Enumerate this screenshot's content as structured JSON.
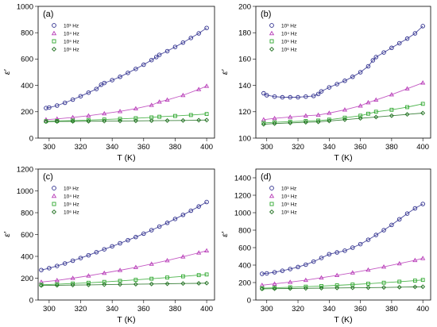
{
  "colors": {
    "series_1e3": "#2b2b8c",
    "series_1e4": "#b83cb8",
    "series_1e5": "#2fa82f",
    "series_1e6": "#1f6f1f"
  },
  "legend_labels": [
    "10³ Hz",
    "10⁴ Hz",
    "10⁵ Hz",
    "10⁶ Hz"
  ],
  "chart_data": [
    {
      "type": "scatter",
      "panel_label": "(a)",
      "xlabel": "T (K)",
      "ylabel": "ε′",
      "xlim": [
        293,
        405
      ],
      "ylim": [
        0,
        1000
      ],
      "x_ticks": [
        300,
        320,
        340,
        360,
        380,
        400
      ],
      "y_ticks": [
        0,
        200,
        400,
        600,
        800,
        1000
      ],
      "legend_position": "top-left",
      "series": [
        {
          "name": "10³ Hz",
          "marker": "circle",
          "color": "#2b2b8c",
          "x": [
            298,
            300,
            305,
            310,
            315,
            320,
            325,
            330,
            333,
            335,
            340,
            345,
            350,
            355,
            360,
            365,
            368,
            370,
            375,
            380,
            385,
            390,
            395,
            400
          ],
          "y": [
            228,
            232,
            247,
            268,
            292,
            318,
            345,
            373,
            405,
            418,
            440,
            465,
            495,
            525,
            557,
            592,
            615,
            632,
            660,
            692,
            725,
            760,
            795,
            836
          ]
        },
        {
          "name": "10⁴ Hz",
          "marker": "triangle",
          "color": "#b83cb8",
          "x": [
            298,
            305,
            315,
            325,
            335,
            345,
            355,
            365,
            370,
            375,
            385,
            395,
            400
          ],
          "y": [
            140,
            146,
            157,
            170,
            186,
            203,
            224,
            250,
            275,
            290,
            325,
            370,
            395
          ]
        },
        {
          "name": "10⁵ Hz",
          "marker": "square",
          "color": "#2fa82f",
          "x": [
            298,
            305,
            315,
            325,
            335,
            345,
            355,
            365,
            370,
            380,
            390,
            400
          ],
          "y": [
            128,
            130,
            133,
            137,
            141,
            146,
            151,
            157,
            162,
            168,
            175,
            183
          ]
        },
        {
          "name": "10⁶ Hz",
          "marker": "diamond",
          "color": "#1f6f1f",
          "x": [
            298,
            305,
            315,
            325,
            335,
            345,
            355,
            365,
            375,
            385,
            395,
            400
          ],
          "y": [
            125,
            126,
            127,
            128,
            129,
            130,
            131,
            132,
            133,
            134,
            136,
            137
          ]
        }
      ]
    },
    {
      "type": "scatter",
      "panel_label": "(b)",
      "xlabel": "T (K)",
      "ylabel": "ε′",
      "xlim": [
        293,
        405
      ],
      "ylim": [
        100,
        200
      ],
      "x_ticks": [
        300,
        320,
        340,
        360,
        380,
        400
      ],
      "y_ticks": [
        100,
        120,
        140,
        160,
        180,
        200
      ],
      "legend_position": "top-left",
      "series": [
        {
          "name": "10³ Hz",
          "marker": "circle",
          "color": "#2b2b8c",
          "x": [
            298,
            300,
            305,
            310,
            315,
            320,
            325,
            330,
            333,
            335,
            340,
            345,
            350,
            355,
            360,
            365,
            368,
            370,
            375,
            380,
            385,
            390,
            395,
            400
          ],
          "y": [
            134,
            132.5,
            131.5,
            131,
            131,
            131,
            131.5,
            132,
            133.5,
            135.5,
            138.5,
            141,
            143.5,
            146.5,
            150,
            154.5,
            159,
            161.5,
            165,
            168.5,
            172,
            175.5,
            179.5,
            185
          ]
        },
        {
          "name": "10⁴ Hz",
          "marker": "triangle",
          "color": "#b83cb8",
          "x": [
            298,
            305,
            315,
            325,
            333,
            340,
            350,
            360,
            365,
            370,
            380,
            390,
            400
          ],
          "y": [
            114,
            115,
            116,
            117,
            117.5,
            119,
            121.5,
            124.5,
            127,
            129,
            133,
            137.5,
            142
          ]
        },
        {
          "name": "10⁵ Hz",
          "marker": "square",
          "color": "#2fa82f",
          "x": [
            298,
            305,
            315,
            325,
            333,
            340,
            350,
            360,
            365,
            370,
            380,
            390,
            400
          ],
          "y": [
            111.5,
            112,
            112.5,
            113,
            113.3,
            114,
            115.5,
            117,
            118.5,
            120,
            121.5,
            123.5,
            126
          ]
        },
        {
          "name": "10⁶ Hz",
          "marker": "diamond",
          "color": "#1f6f1f",
          "x": [
            298,
            305,
            315,
            325,
            333,
            340,
            350,
            360,
            370,
            380,
            390,
            400
          ],
          "y": [
            110.5,
            111,
            111.5,
            112,
            112.3,
            113,
            114,
            115,
            116,
            117,
            118,
            119
          ]
        }
      ]
    },
    {
      "type": "scatter",
      "panel_label": "(c)",
      "xlabel": "T (K)",
      "ylabel": "ε′",
      "xlim": [
        293,
        405
      ],
      "ylim": [
        0,
        1200
      ],
      "x_ticks": [
        300,
        320,
        340,
        360,
        380,
        400
      ],
      "y_ticks": [
        0,
        200,
        400,
        600,
        800,
        1000,
        1200
      ],
      "legend_position": "top-left",
      "series": [
        {
          "name": "10³ Hz",
          "marker": "circle",
          "color": "#2b2b8c",
          "x": [
            295,
            300,
            305,
            310,
            315,
            320,
            325,
            330,
            335,
            340,
            345,
            350,
            355,
            360,
            365,
            370,
            375,
            380,
            385,
            390,
            395,
            400
          ],
          "y": [
            275,
            292,
            312,
            335,
            360,
            385,
            410,
            438,
            465,
            492,
            520,
            548,
            577,
            608,
            640,
            673,
            707,
            743,
            780,
            818,
            857,
            898
          ]
        },
        {
          "name": "10⁴ Hz",
          "marker": "triangle",
          "color": "#b83cb8",
          "x": [
            295,
            305,
            315,
            325,
            335,
            345,
            355,
            365,
            375,
            385,
            395,
            400
          ],
          "y": [
            165,
            180,
            200,
            222,
            247,
            273,
            300,
            330,
            362,
            397,
            433,
            452
          ]
        },
        {
          "name": "10⁵ Hz",
          "marker": "square",
          "color": "#2fa82f",
          "x": [
            295,
            305,
            315,
            325,
            335,
            345,
            355,
            365,
            375,
            385,
            395,
            400
          ],
          "y": [
            140,
            145,
            151,
            158,
            166,
            175,
            185,
            195,
            206,
            217,
            228,
            234
          ]
        },
        {
          "name": "10⁶ Hz",
          "marker": "diamond",
          "color": "#1f6f1f",
          "x": [
            295,
            305,
            315,
            325,
            335,
            345,
            355,
            365,
            375,
            385,
            395,
            400
          ],
          "y": [
            133,
            135,
            137,
            139,
            141,
            143,
            145,
            147,
            149,
            151,
            153,
            155
          ]
        }
      ]
    },
    {
      "type": "scatter",
      "panel_label": "(d)",
      "xlabel": "T (K)",
      "ylabel": "ε′",
      "xlim": [
        293,
        405
      ],
      "ylim": [
        0,
        1500
      ],
      "x_ticks": [
        300,
        320,
        340,
        360,
        380,
        400
      ],
      "y_ticks": [
        0,
        200,
        400,
        600,
        800,
        1000,
        1200,
        1400
      ],
      "legend_position": "top-left",
      "series": [
        {
          "name": "10³ Hz",
          "marker": "circle",
          "color": "#2b2b8c",
          "x": [
            297,
            300,
            305,
            310,
            315,
            320,
            325,
            330,
            335,
            340,
            345,
            350,
            355,
            360,
            365,
            370,
            375,
            380,
            385,
            390,
            395,
            400
          ],
          "y": [
            300,
            305,
            318,
            335,
            355,
            378,
            405,
            440,
            482,
            525,
            545,
            565,
            600,
            640,
            690,
            745,
            800,
            860,
            925,
            990,
            1050,
            1100
          ]
        },
        {
          "name": "10⁴ Hz",
          "marker": "triangle",
          "color": "#b83cb8",
          "x": [
            297,
            305,
            315,
            325,
            335,
            345,
            355,
            365,
            375,
            385,
            395,
            400
          ],
          "y": [
            170,
            185,
            205,
            228,
            255,
            283,
            313,
            345,
            380,
            417,
            455,
            478
          ]
        },
        {
          "name": "10⁵ Hz",
          "marker": "square",
          "color": "#2fa82f",
          "x": [
            297,
            305,
            315,
            325,
            335,
            345,
            355,
            365,
            375,
            385,
            395,
            400
          ],
          "y": [
            135,
            140,
            146,
            153,
            160,
            168,
            177,
            187,
            198,
            210,
            222,
            230
          ]
        },
        {
          "name": "10⁶ Hz",
          "marker": "diamond",
          "color": "#1f6f1f",
          "x": [
            297,
            305,
            315,
            325,
            335,
            345,
            355,
            365,
            375,
            385,
            395,
            400
          ],
          "y": [
            128,
            130,
            132,
            134,
            136,
            138,
            140,
            142,
            144,
            147,
            150,
            152
          ]
        }
      ]
    }
  ]
}
